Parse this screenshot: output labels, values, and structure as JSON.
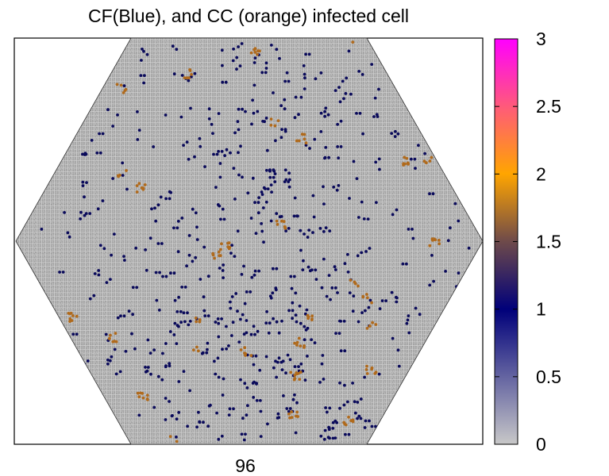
{
  "chart_data": {
    "type": "heatmap",
    "title": "CF(Blue), and CC (orange) infected cell",
    "xlabel": "96",
    "ylabel": "",
    "grid": false,
    "layout": "hexagonal lattice of cells shaped as a flat-edged hexagon",
    "lattice_side_cells": 96,
    "colorbar": {
      "range": [
        0,
        3
      ],
      "ticks": [
        "0",
        "0.5",
        "1",
        "1.5",
        "2",
        "2.5",
        "3"
      ],
      "stops": [
        {
          "value": 0,
          "color": "#c8c8c8"
        },
        {
          "value": 1,
          "color": "#00007a"
        },
        {
          "value": 1.5,
          "color": "#6e4a4a"
        },
        {
          "value": 2,
          "color": "#ffa500"
        },
        {
          "value": 2.5,
          "color": "#ff5a7a"
        },
        {
          "value": 3,
          "color": "#ff00ff"
        }
      ]
    },
    "cell_states": [
      {
        "value": 0,
        "meaning": "uninfected (gray background cells)"
      },
      {
        "value": 1,
        "meaning": "CF infected (blue)"
      },
      {
        "value": 2,
        "meaning": "CC infected (orange)"
      }
    ],
    "colors": {
      "uninfected": "#a4a4a4",
      "cell_outline": "#d6d6d6",
      "cf": "#0a0a5a",
      "cc": "#b06a1c",
      "frame": "#000000"
    }
  }
}
